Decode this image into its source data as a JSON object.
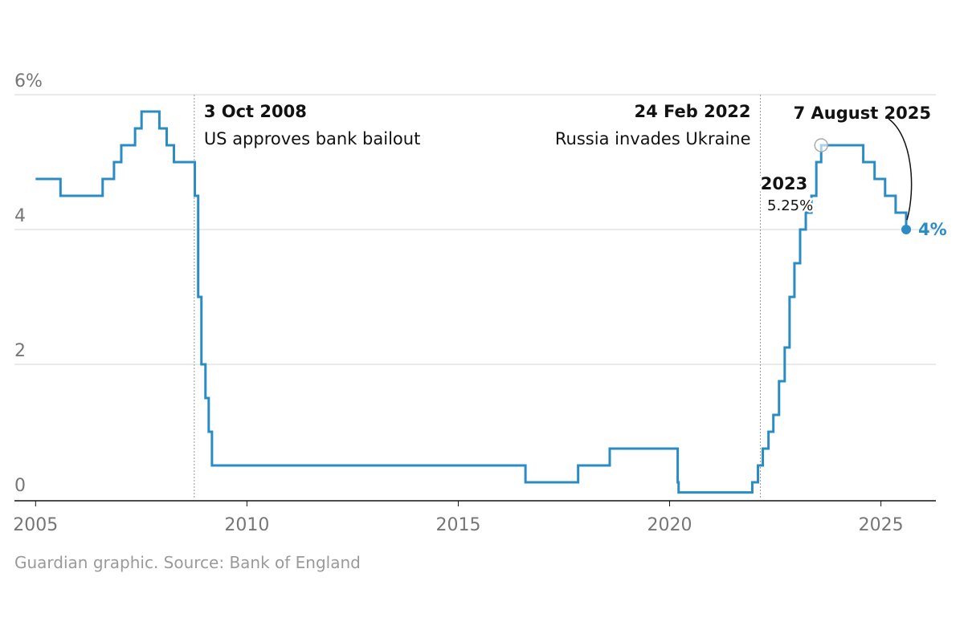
{
  "chart_data": {
    "type": "line",
    "step": true,
    "color": "#2b8cc4",
    "ylim": [
      0,
      6
    ],
    "xlim": [
      2004.5,
      2026.3
    ],
    "y_ticks": [
      {
        "value": 0,
        "label": "0"
      },
      {
        "value": 2,
        "label": "2"
      },
      {
        "value": 4,
        "label": "4"
      },
      {
        "value": 6,
        "label": "6%"
      }
    ],
    "x_ticks": [
      {
        "value": 2005,
        "label": "2005"
      },
      {
        "value": 2010,
        "label": "2010"
      },
      {
        "value": 2015,
        "label": "2015"
      },
      {
        "value": 2020,
        "label": "2020"
      },
      {
        "value": 2025,
        "label": "2025"
      }
    ],
    "grid": true,
    "series": [
      {
        "x": [
          "2005-01-01",
          "2005-08-04",
          "2006-08-03",
          "2006-11-09",
          "2007-01-11",
          "2007-05-10",
          "2007-07-05",
          "2007-12-06",
          "2008-02-07",
          "2008-04-10",
          "2008-10-08",
          "2008-11-06",
          "2008-12-04",
          "2009-01-08",
          "2009-02-05",
          "2009-03-05",
          "2016-08-04",
          "2017-11-02",
          "2018-08-02",
          "2020-03-11",
          "2020-03-19",
          "2021-12-16",
          "2022-02-03",
          "2022-03-17",
          "2022-05-05",
          "2022-06-16",
          "2022-08-04",
          "2022-09-22",
          "2022-11-03",
          "2022-12-15",
          "2023-02-02",
          "2023-03-23",
          "2023-05-11",
          "2023-06-22",
          "2023-08-03",
          "2024-08-01",
          "2024-11-07",
          "2025-02-06",
          "2025-05-08",
          "2025-08-07"
        ],
        "values": [
          4.75,
          4.5,
          4.75,
          5.0,
          5.25,
          5.5,
          5.75,
          5.5,
          5.25,
          5.0,
          4.5,
          3.0,
          2.0,
          1.5,
          1.0,
          0.5,
          0.25,
          0.5,
          0.75,
          0.25,
          0.1,
          0.25,
          0.5,
          0.75,
          1.0,
          1.25,
          1.75,
          2.25,
          3.0,
          3.5,
          4.0,
          4.25,
          4.5,
          5.0,
          5.25,
          5.0,
          4.75,
          4.5,
          4.25,
          4.0
        ]
      }
    ],
    "annotations": [
      {
        "x": "2008-10-03",
        "title": "3 Oct 2008",
        "text": "US approves bank bailout"
      },
      {
        "x": "2022-02-24",
        "title": "24 Feb 2022",
        "text": "Russia invades Ukraine"
      }
    ],
    "peak": {
      "x": "2023-08-03",
      "value": 5.25,
      "year_label": "2023",
      "value_label": "5.25%"
    },
    "latest": {
      "x": "2025-08-07",
      "value": 4.0,
      "date_label": "7 August 2025",
      "value_label": "4%"
    }
  },
  "footer": {
    "source": "Guardian graphic. Source: Bank of England"
  }
}
